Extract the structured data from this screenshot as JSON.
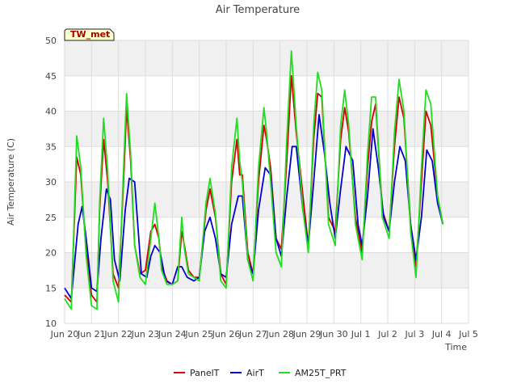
{
  "chart_data": {
    "type": "line",
    "title": "Air Temperature",
    "xlabel": "Time",
    "ylabel": "Air Temperature (C)",
    "station_tag": "TW_met",
    "ylim": [
      10,
      50
    ],
    "yticks": [
      10,
      15,
      20,
      25,
      30,
      35,
      40,
      45,
      50
    ],
    "xlim": [
      0,
      15
    ],
    "xticks": [
      0,
      1,
      2,
      3,
      4,
      5,
      6,
      7,
      8,
      9,
      10,
      11,
      12,
      13,
      14,
      15
    ],
    "xtick_labels": [
      "Jun 20",
      "Jun 21",
      "Jun 22",
      "Jun 23",
      "Jun 24",
      "Jun 25",
      "Jun 26",
      "Jun 27",
      "Jun 28",
      "Jun 29",
      "Jun 30",
      "Jul 1",
      "Jul 2",
      "Jul 3",
      "Jul 4",
      "Jul 5"
    ],
    "x_units": "days since Jun 20",
    "grid": true,
    "legend_position": "bottom",
    "background_bands": "alternating",
    "series": [
      {
        "name": "PanelT",
        "color": "#d40000",
        "x": [
          0.0,
          0.25,
          0.45,
          0.6,
          0.8,
          1.0,
          1.2,
          1.3,
          1.45,
          1.6,
          1.8,
          2.0,
          2.2,
          2.3,
          2.45,
          2.6,
          2.8,
          3.0,
          3.2,
          3.35,
          3.5,
          3.6,
          3.8,
          4.0,
          4.2,
          4.35,
          4.45,
          4.6,
          4.8,
          5.0,
          5.25,
          5.4,
          5.6,
          5.8,
          6.0,
          6.2,
          6.4,
          6.5,
          6.6,
          6.8,
          7.0,
          7.2,
          7.4,
          7.5,
          7.65,
          7.85,
          8.05,
          8.25,
          8.42,
          8.6,
          8.85,
          9.05,
          9.25,
          9.4,
          9.55,
          9.8,
          10.05,
          10.25,
          10.4,
          10.55,
          10.8,
          11.05,
          11.25,
          11.4,
          11.55,
          11.8,
          12.05,
          12.25,
          12.42,
          12.6,
          12.85,
          13.05,
          13.25,
          13.42,
          13.6,
          13.85,
          14.05
        ],
        "y": [
          14.0,
          13.0,
          33.5,
          31.0,
          20.0,
          14.0,
          13.0,
          26.0,
          36.0,
          30.0,
          17.0,
          15.0,
          31.0,
          40.5,
          33.0,
          21.0,
          17.0,
          17.5,
          23.0,
          24.0,
          22.0,
          18.0,
          16.0,
          15.5,
          16.0,
          23.0,
          21.0,
          17.5,
          16.5,
          16.5,
          26.0,
          29.0,
          25.0,
          17.0,
          15.5,
          30.0,
          36.0,
          31.0,
          31.0,
          20.0,
          17.0,
          30.0,
          38.0,
          36.0,
          32.0,
          22.0,
          20.5,
          33.0,
          45.0,
          37.0,
          28.0,
          21.0,
          36.0,
          42.5,
          42.0,
          25.0,
          23.0,
          36.0,
          40.5,
          37.0,
          25.0,
          20.0,
          32.0,
          38.5,
          41.0,
          26.0,
          23.0,
          35.0,
          42.0,
          39.0,
          24.0,
          18.0,
          30.0,
          40.0,
          38.0,
          28.0,
          24.0
        ]
      },
      {
        "name": "AirT",
        "color": "#0000d0",
        "x": [
          0.0,
          0.25,
          0.5,
          0.65,
          0.8,
          1.0,
          1.2,
          1.35,
          1.55,
          1.7,
          1.85,
          2.05,
          2.25,
          2.4,
          2.6,
          2.85,
          3.05,
          3.2,
          3.35,
          3.55,
          3.75,
          4.0,
          4.2,
          4.35,
          4.55,
          4.8,
          5.0,
          5.2,
          5.4,
          5.6,
          5.8,
          6.0,
          6.2,
          6.45,
          6.6,
          6.8,
          7.0,
          7.2,
          7.45,
          7.65,
          7.85,
          8.05,
          8.25,
          8.45,
          8.6,
          8.85,
          9.05,
          9.25,
          9.45,
          9.65,
          9.85,
          10.05,
          10.25,
          10.45,
          10.7,
          10.9,
          11.05,
          11.25,
          11.45,
          11.65,
          11.85,
          12.05,
          12.25,
          12.45,
          12.65,
          12.85,
          13.05,
          13.25,
          13.45,
          13.65,
          13.85,
          14.05
        ],
        "y": [
          15.0,
          13.5,
          24.0,
          26.5,
          22.0,
          15.0,
          14.5,
          22.0,
          29.0,
          27.5,
          19.0,
          16.0,
          26.0,
          30.5,
          30.0,
          17.0,
          16.5,
          19.5,
          21.0,
          20.0,
          16.0,
          15.5,
          18.0,
          18.0,
          16.5,
          16.0,
          16.5,
          23.0,
          25.0,
          22.0,
          17.0,
          16.5,
          24.0,
          28.0,
          28.0,
          19.0,
          17.0,
          26.0,
          32.0,
          31.0,
          22.0,
          19.5,
          28.0,
          35.0,
          35.0,
          26.0,
          21.0,
          30.0,
          39.5,
          34.0,
          27.0,
          22.0,
          29.0,
          35.0,
          33.0,
          24.0,
          21.0,
          28.0,
          37.5,
          32.0,
          25.0,
          23.0,
          30.0,
          35.0,
          33.0,
          24.0,
          19.0,
          25.0,
          34.5,
          33.0,
          27.0,
          24.0
        ]
      },
      {
        "name": "AM25T_PRT",
        "color": "#22dd22",
        "x": [
          0.0,
          0.25,
          0.45,
          0.6,
          0.8,
          1.0,
          1.2,
          1.3,
          1.45,
          1.6,
          1.8,
          2.0,
          2.2,
          2.3,
          2.45,
          2.6,
          2.8,
          3.0,
          3.2,
          3.35,
          3.5,
          3.6,
          3.8,
          4.0,
          4.2,
          4.35,
          4.45,
          4.6,
          4.8,
          5.0,
          5.25,
          5.4,
          5.6,
          5.8,
          6.0,
          6.2,
          6.4,
          6.5,
          6.6,
          6.8,
          7.0,
          7.2,
          7.4,
          7.5,
          7.65,
          7.85,
          8.05,
          8.25,
          8.42,
          8.6,
          8.85,
          9.05,
          9.25,
          9.4,
          9.55,
          9.8,
          10.05,
          10.25,
          10.4,
          10.55,
          10.8,
          11.05,
          11.25,
          11.4,
          11.55,
          11.8,
          12.05,
          12.25,
          12.42,
          12.6,
          12.85,
          13.05,
          13.25,
          13.42,
          13.6,
          13.85,
          14.05
        ],
        "y": [
          13.5,
          12.0,
          36.5,
          32.0,
          19.5,
          12.5,
          12.0,
          27.0,
          39.0,
          31.5,
          16.0,
          13.0,
          33.0,
          42.5,
          34.0,
          21.0,
          16.5,
          15.5,
          22.0,
          27.0,
          22.0,
          17.5,
          15.5,
          15.5,
          16.0,
          25.0,
          20.5,
          17.0,
          16.5,
          16.0,
          27.0,
          30.5,
          25.5,
          16.0,
          15.0,
          32.0,
          39.0,
          33.0,
          30.0,
          19.0,
          16.0,
          32.0,
          40.5,
          37.0,
          30.0,
          20.0,
          18.0,
          36.0,
          48.5,
          38.0,
          26.0,
          20.0,
          38.0,
          45.5,
          43.0,
          24.0,
          21.0,
          38.0,
          43.0,
          38.0,
          24.0,
          19.0,
          34.0,
          42.0,
          42.0,
          25.0,
          22.0,
          37.0,
          44.5,
          40.0,
          23.0,
          16.5,
          32.0,
          43.0,
          41.0,
          28.0,
          24.0
        ]
      }
    ]
  }
}
